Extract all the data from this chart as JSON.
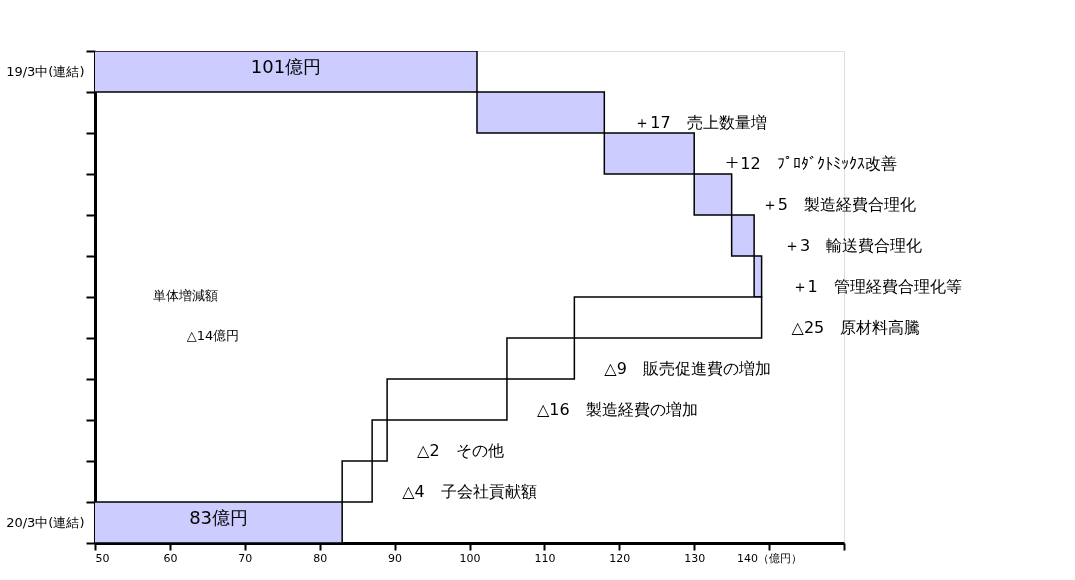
{
  "chart_data": {
    "type": "bar",
    "orientation": "horizontal",
    "categories": [
      "19/3中(連結)",
      null,
      null,
      null,
      null,
      null,
      null,
      null,
      null,
      null,
      null,
      "20/3中(連結)"
    ],
    "values": [
      101,
      17,
      12,
      5,
      3,
      1,
      -25,
      -9,
      -16,
      -2,
      -4,
      83
    ],
    "base": [
      0,
      101,
      118,
      130,
      135,
      138,
      139,
      114,
      105,
      89,
      87,
      0
    ],
    "colors": [
      "#ccccff",
      "#ccccff",
      "#ccccff",
      "#ccccff",
      "#ccccff",
      "#ccccff",
      "#ffffff",
      "#ffffff",
      "#ffffff",
      "#ffffff",
      "#ffffff",
      "#ccccff"
    ],
    "value_labels": [
      "101億円",
      "＋17　売上数量増",
      "＋12　ﾌﾟﾛﾀﾞｸﾄﾐｯｸｽ改善",
      "＋5　製造経費合理化",
      "＋3　輸送費合理化",
      "＋1　管理経費合理化等",
      "△25　原材料高騰",
      "△9　販売促進費の増加",
      "△16　製造経費の増加",
      "△2　その他",
      "△4　子会社貢献額",
      "83億円"
    ],
    "xlim": [
      50,
      150
    ],
    "xticks": [
      50,
      60,
      70,
      80,
      90,
      100,
      110,
      120,
      130,
      {
        "value": 140,
        "label": "140（億円）"
      },
      {
        "value": 150,
        "label": null
      }
    ],
    "annotations": [
      "単体増減額",
      "△14億円"
    ]
  }
}
